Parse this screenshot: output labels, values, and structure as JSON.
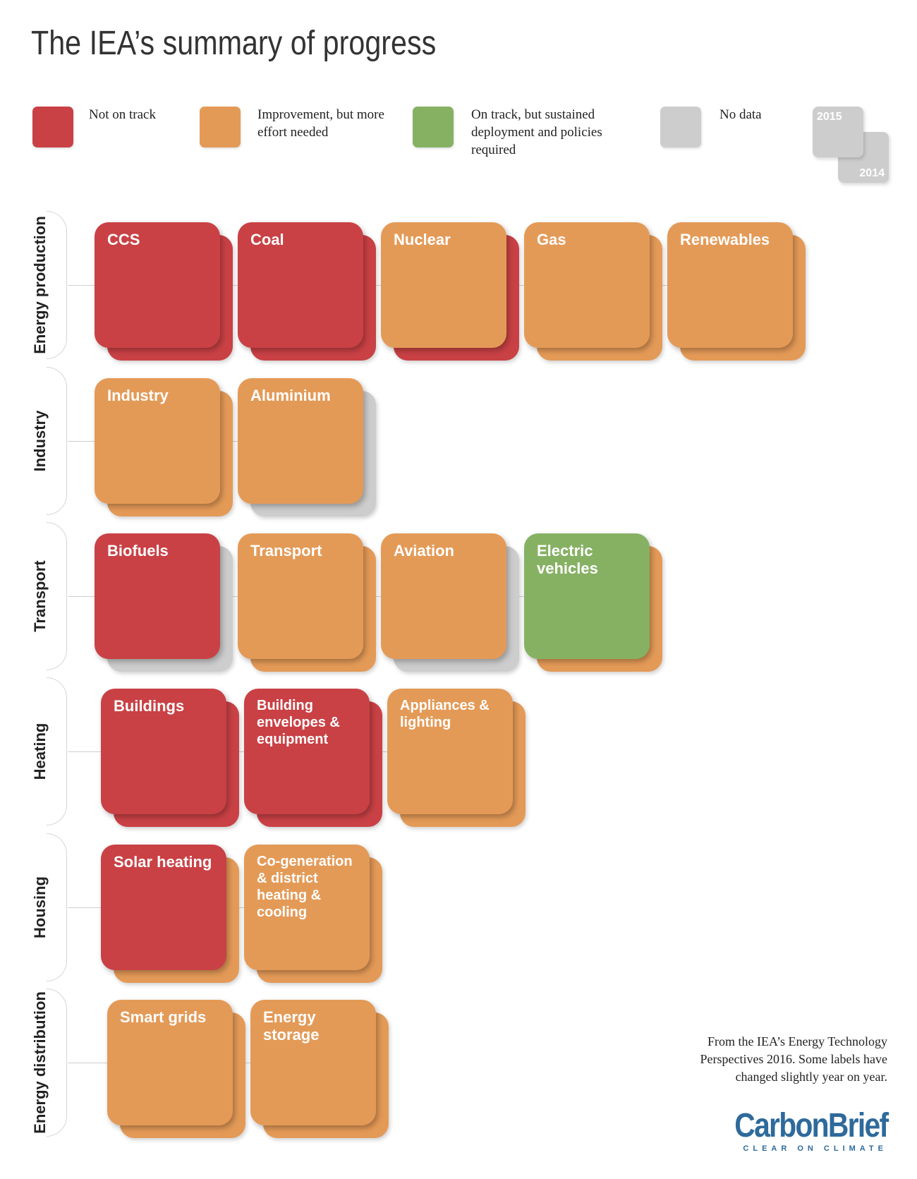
{
  "title": "The IEA’s summary of progress",
  "colors": {
    "red": "#c94145",
    "orange": "#e49a57",
    "green": "#86b163",
    "grey": "#cdcdcd"
  },
  "legend": [
    {
      "label": "Not on track",
      "color": "red"
    },
    {
      "label": "Improvement, but more effort needed",
      "color": "orange"
    },
    {
      "label": "On track, but sustained deployment and policies required",
      "color": "green"
    },
    {
      "label": "No data",
      "color": "grey"
    }
  ],
  "year_key": {
    "front": "2015",
    "back": "2014"
  },
  "categories": [
    {
      "name": "Energy production",
      "items": [
        {
          "label": "CCS",
          "y2015": "red",
          "y2014": "red"
        },
        {
          "label": "Coal",
          "y2015": "red",
          "y2014": "red"
        },
        {
          "label": "Nuclear",
          "y2015": "orange",
          "y2014": "red"
        },
        {
          "label": "Gas",
          "y2015": "orange",
          "y2014": "orange"
        },
        {
          "label": "Renewables",
          "y2015": "orange",
          "y2014": "orange"
        }
      ]
    },
    {
      "name": "Industry",
      "items": [
        {
          "label": "Industry",
          "y2015": "orange",
          "y2014": "orange"
        },
        {
          "label": "Aluminium",
          "y2015": "orange",
          "y2014": "grey"
        }
      ]
    },
    {
      "name": "Transport",
      "items": [
        {
          "label": "Biofuels",
          "y2015": "red",
          "y2014": "grey"
        },
        {
          "label": "Transport",
          "y2015": "orange",
          "y2014": "orange"
        },
        {
          "label": "Aviation",
          "y2015": "orange",
          "y2014": "grey"
        },
        {
          "label": "Electric vehicles",
          "y2015": "green",
          "y2014": "orange"
        }
      ]
    },
    {
      "name": "Heating",
      "items": [
        {
          "label": "Buildings",
          "y2015": "red",
          "y2014": "red"
        },
        {
          "label": "Building envelopes & equipment",
          "y2015": "red",
          "y2014": "red"
        },
        {
          "label": "Appliances & lighting",
          "y2015": "orange",
          "y2014": "orange"
        }
      ]
    },
    {
      "name": "Housing",
      "items": [
        {
          "label": "Solar heating",
          "y2015": "red",
          "y2014": "orange"
        },
        {
          "label": "Co-generation & district heating & cooling",
          "y2015": "orange",
          "y2014": "orange"
        }
      ]
    },
    {
      "name": "Energy distribution",
      "items": [
        {
          "label": "Smart grids",
          "y2015": "orange",
          "y2014": "orange"
        },
        {
          "label": "Energy storage",
          "y2015": "orange",
          "y2014": "orange"
        }
      ]
    }
  ],
  "note": "From the IEA’s Energy Technology Perspectives 2016. Some labels have changed slightly year on year.",
  "brand": {
    "name": "CarbonBrief",
    "tagline": "CLEAR ON CLIMATE"
  }
}
